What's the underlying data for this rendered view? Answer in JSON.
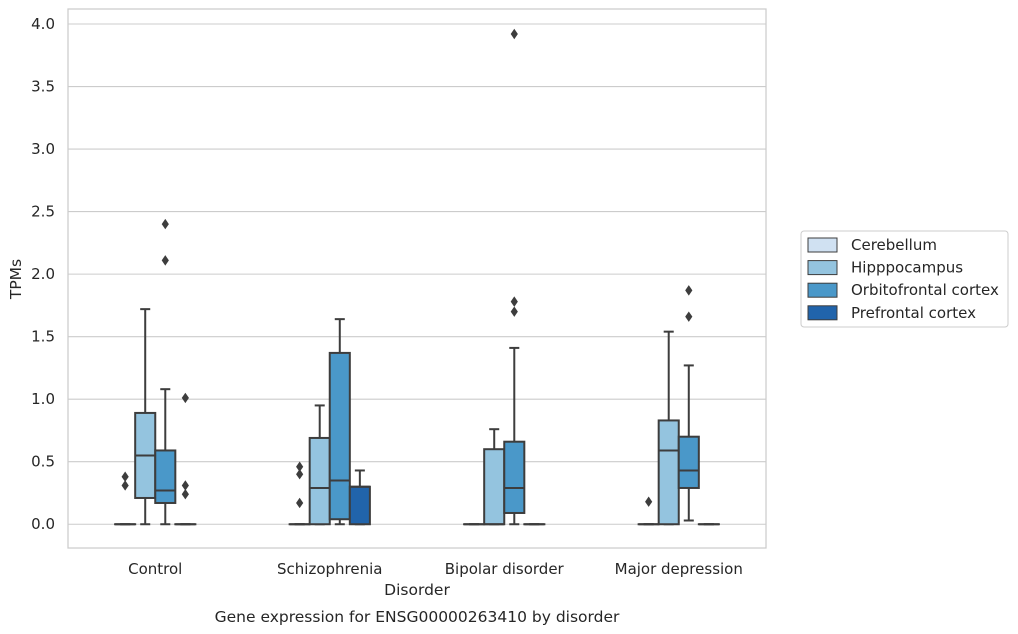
{
  "chart_data": {
    "type": "box",
    "xlabel": "Disorder",
    "ylabel": "TPMs",
    "caption": "Gene expression for ENSG00000263410 by disorder",
    "ylim": [
      -0.19,
      4.12
    ],
    "yticks": [
      "0.0",
      "0.5",
      "1.0",
      "1.5",
      "2.0",
      "2.5",
      "3.0",
      "3.5",
      "4.0"
    ],
    "grid": "horizontal",
    "legend_position": "right",
    "categories": [
      "Control",
      "Schizophrenia",
      "Bipolar disorder",
      "Major depression"
    ],
    "series": [
      {
        "name": "Cerebellum",
        "color": "#d0e1f2",
        "boxes": [
          {
            "whisker_low": 0,
            "q1": 0,
            "median": 0,
            "q3": 0,
            "whisker_high": 0,
            "outliers": [
              0.31,
              0.38
            ]
          },
          {
            "whisker_low": 0,
            "q1": 0,
            "median": 0,
            "q3": 0,
            "whisker_high": 0,
            "outliers": [
              0.17,
              0.4,
              0.46
            ]
          },
          {
            "whisker_low": 0,
            "q1": 0,
            "median": 0,
            "q3": 0,
            "whisker_high": 0,
            "outliers": []
          },
          {
            "whisker_low": 0,
            "q1": 0,
            "median": 0,
            "q3": 0,
            "whisker_high": 0,
            "outliers": [
              0.18
            ]
          }
        ]
      },
      {
        "name": "Hipppocampus",
        "color": "#94c4df",
        "boxes": [
          {
            "whisker_low": 0,
            "q1": 0.21,
            "median": 0.55,
            "q3": 0.89,
            "whisker_high": 1.72,
            "outliers": []
          },
          {
            "whisker_low": 0,
            "q1": 0.0,
            "median": 0.29,
            "q3": 0.69,
            "whisker_high": 0.95,
            "outliers": []
          },
          {
            "whisker_low": 0,
            "q1": 0.0,
            "median": 0.0,
            "q3": 0.6,
            "whisker_high": 0.76,
            "outliers": []
          },
          {
            "whisker_low": 0,
            "q1": 0.0,
            "median": 0.59,
            "q3": 0.83,
            "whisker_high": 1.54,
            "outliers": []
          }
        ]
      },
      {
        "name": "Orbitofrontal cortex",
        "color": "#4a98c9",
        "boxes": [
          {
            "whisker_low": 0,
            "q1": 0.17,
            "median": 0.27,
            "q3": 0.59,
            "whisker_high": 1.08,
            "outliers": [
              2.11,
              2.4
            ]
          },
          {
            "whisker_low": 0,
            "q1": 0.04,
            "median": 0.35,
            "q3": 1.37,
            "whisker_high": 1.64,
            "outliers": []
          },
          {
            "whisker_low": 0,
            "q1": 0.09,
            "median": 0.29,
            "q3": 0.66,
            "whisker_high": 1.41,
            "outliers": [
              1.7,
              1.78,
              3.92
            ]
          },
          {
            "whisker_low": 0.03,
            "q1": 0.29,
            "median": 0.43,
            "q3": 0.7,
            "whisker_high": 1.27,
            "outliers": [
              1.66,
              1.87
            ]
          }
        ]
      },
      {
        "name": "Prefrontal cortex",
        "color": "#2164ab",
        "boxes": [
          {
            "whisker_low": 0,
            "q1": 0,
            "median": 0,
            "q3": 0,
            "whisker_high": 0,
            "outliers": [
              0.24,
              0.31,
              1.01
            ]
          },
          {
            "whisker_low": 0,
            "q1": 0.0,
            "median": 0.3,
            "q3": 0.3,
            "whisker_high": 0.43,
            "outliers": []
          },
          {
            "whisker_low": 0,
            "q1": 0,
            "median": 0,
            "q3": 0,
            "whisker_high": 0,
            "outliers": []
          },
          {
            "whisker_low": 0,
            "q1": 0,
            "median": 0,
            "q3": 0,
            "whisker_high": 0,
            "outliers": []
          }
        ]
      }
    ]
  }
}
